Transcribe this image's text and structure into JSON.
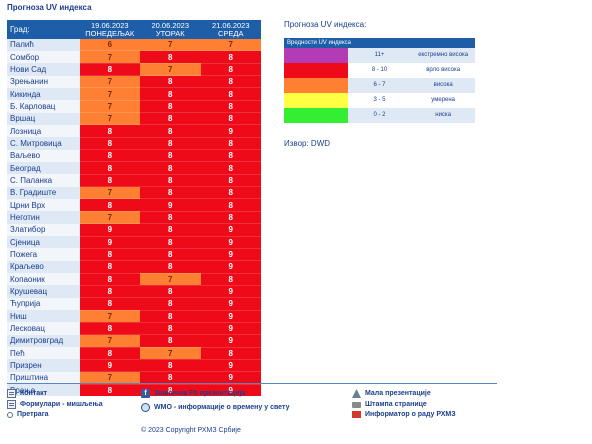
{
  "page": {
    "title": "Прогноза UV индекса"
  },
  "table": {
    "city_header": "Град:",
    "days": [
      {
        "date": "19.06.2023",
        "weekday": "ПОНЕДЕЉАК"
      },
      {
        "date": "20.06.2023",
        "weekday": "УТОРАК"
      },
      {
        "date": "21.06.2023",
        "weekday": "СРЕДА"
      }
    ],
    "rows": [
      {
        "city": "Палић",
        "values": [
          "6",
          "7",
          "7"
        ]
      },
      {
        "city": "Сомбор",
        "values": [
          "7",
          "8",
          "8"
        ]
      },
      {
        "city": "Нови Сад",
        "values": [
          "8",
          "7",
          "8"
        ]
      },
      {
        "city": "Зрењанин",
        "values": [
          "7",
          "8",
          "8"
        ]
      },
      {
        "city": "Кикинда",
        "values": [
          "7",
          "8",
          "8"
        ]
      },
      {
        "city": "Б. Карловац",
        "values": [
          "7",
          "8",
          "8"
        ]
      },
      {
        "city": "Вршац",
        "values": [
          "7",
          "8",
          "8"
        ]
      },
      {
        "city": "Лозница",
        "values": [
          "8",
          "8",
          "9"
        ]
      },
      {
        "city": "С. Митровица",
        "values": [
          "8",
          "8",
          "8"
        ]
      },
      {
        "city": "Ваљево",
        "values": [
          "8",
          "8",
          "8"
        ]
      },
      {
        "city": "Београд",
        "values": [
          "8",
          "8",
          "8"
        ]
      },
      {
        "city": "С. Паланка",
        "values": [
          "8",
          "8",
          "8"
        ]
      },
      {
        "city": "В. Градиште",
        "values": [
          "7",
          "8",
          "8"
        ]
      },
      {
        "city": "Црни Врх",
        "values": [
          "8",
          "9",
          "8"
        ]
      },
      {
        "city": "Неготин",
        "values": [
          "7",
          "8",
          "8"
        ]
      },
      {
        "city": "Златибор",
        "values": [
          "9",
          "8",
          "9"
        ]
      },
      {
        "city": "Сјеница",
        "values": [
          "9",
          "8",
          "9"
        ]
      },
      {
        "city": "Пожега",
        "values": [
          "8",
          "8",
          "9"
        ]
      },
      {
        "city": "Краљево",
        "values": [
          "8",
          "8",
          "9"
        ]
      },
      {
        "city": "Копаоник",
        "values": [
          "8",
          "7",
          "8"
        ]
      },
      {
        "city": "Крушевац",
        "values": [
          "8",
          "8",
          "9"
        ]
      },
      {
        "city": "Ћуприја",
        "values": [
          "8",
          "8",
          "9"
        ]
      },
      {
        "city": "Ниш",
        "values": [
          "7",
          "8",
          "9"
        ]
      },
      {
        "city": "Лесковац",
        "values": [
          "8",
          "8",
          "9"
        ]
      },
      {
        "city": "Димитровград",
        "values": [
          "7",
          "8",
          "9"
        ]
      },
      {
        "city": "Пећ",
        "values": [
          "8",
          "7",
          "8"
        ]
      },
      {
        "city": "Призрен",
        "values": [
          "9",
          "8",
          "9"
        ]
      },
      {
        "city": "Приштина",
        "values": [
          "7",
          "8",
          "9"
        ]
      },
      {
        "city": "Врање",
        "values": [
          "8",
          "8",
          "9"
        ]
      }
    ]
  },
  "legend": {
    "title": "Прогноза UV индекса:",
    "header": "Вредности UV индекса",
    "items": [
      {
        "range": "11+",
        "label": "екстремно висока",
        "color": "#b23cb4"
      },
      {
        "range": "8 - 10",
        "label": "врло висока",
        "color": "#ee0a18"
      },
      {
        "range": "6 - 7",
        "label": "висока",
        "color": "#ff7f33"
      },
      {
        "range": "3 - 5",
        "label": "умерена",
        "color": "#ffff44"
      },
      {
        "range": "0 - 2",
        "label": "ниска",
        "color": "#33ee33"
      }
    ]
  },
  "source": "Извор: DWD",
  "footer": {
    "contact": "Контакт",
    "forms": "Формулари - мишљења",
    "search": "Претрага",
    "fb": "Званична Fb презентација",
    "wmo": "WMO - информације о времену у свету",
    "mini": "Мала презентације",
    "print": "Штампа странице",
    "report": "Информатор о раду РХМЗ",
    "copyright": "© 2023 Copyright РХМЗ Србије"
  }
}
